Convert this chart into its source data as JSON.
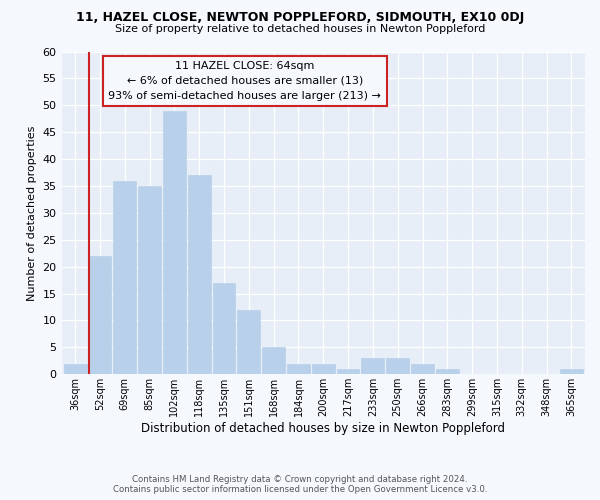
{
  "title1": "11, HAZEL CLOSE, NEWTON POPPLEFORD, SIDMOUTH, EX10 0DJ",
  "title2": "Size of property relative to detached houses in Newton Poppleford",
  "xlabel": "Distribution of detached houses by size in Newton Poppleford",
  "ylabel": "Number of detached properties",
  "bar_color": "#b8d0ea",
  "bar_edge_color": "#b8d0ea",
  "highlight_line_color": "#cc2222",
  "annotation_title": "11 HAZEL CLOSE: 64sqm",
  "annotation_line1": "← 6% of detached houses are smaller (13)",
  "annotation_line2": "93% of semi-detached houses are larger (213) →",
  "annotation_box_color": "#cc2222",
  "categories": [
    "36sqm",
    "52sqm",
    "69sqm",
    "85sqm",
    "102sqm",
    "118sqm",
    "135sqm",
    "151sqm",
    "168sqm",
    "184sqm",
    "200sqm",
    "217sqm",
    "233sqm",
    "250sqm",
    "266sqm",
    "283sqm",
    "299sqm",
    "315sqm",
    "332sqm",
    "348sqm",
    "365sqm"
  ],
  "values": [
    2,
    22,
    36,
    35,
    49,
    37,
    17,
    12,
    5,
    2,
    2,
    1,
    3,
    3,
    2,
    1,
    0,
    0,
    0,
    0,
    1
  ],
  "highlight_index": 1,
  "ylim": [
    0,
    60
  ],
  "yticks": [
    0,
    5,
    10,
    15,
    20,
    25,
    30,
    35,
    40,
    45,
    50,
    55,
    60
  ],
  "footer1": "Contains HM Land Registry data © Crown copyright and database right 2024.",
  "footer2": "Contains public sector information licensed under the Open Government Licence v3.0.",
  "background_color": "#f5f8fd",
  "plot_bg_color": "#e8eef8"
}
